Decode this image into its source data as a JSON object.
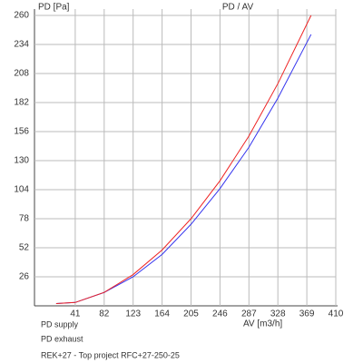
{
  "chart_data": {
    "type": "line",
    "title": "PD / AV",
    "y_label": "PD [Pa]",
    "x_label": "AV [m3/h]",
    "x": [
      14,
      41,
      82,
      123,
      164,
      205,
      246,
      287,
      328,
      375
    ],
    "series": [
      {
        "name": "PD supply",
        "color": "#3333ee",
        "values": [
          2,
          3,
          12,
          26,
          46,
          73,
          105,
          142,
          186,
          243
        ]
      },
      {
        "name": "PD exhaust",
        "color": "#ee2222",
        "values": [
          2,
          3,
          12,
          28,
          50,
          78,
          112,
          152,
          199,
          260
        ]
      }
    ],
    "xlim": [
      0,
      410
    ],
    "xticks": [
      41,
      82,
      123,
      164,
      205,
      246,
      287,
      328,
      369,
      410
    ],
    "ylim": [
      0,
      260
    ],
    "yticks": [
      26,
      52,
      78,
      104,
      130,
      156,
      182,
      208,
      234,
      260
    ],
    "grid": true,
    "footer": "REK+27  - Top project     RFC+27-250-25"
  }
}
